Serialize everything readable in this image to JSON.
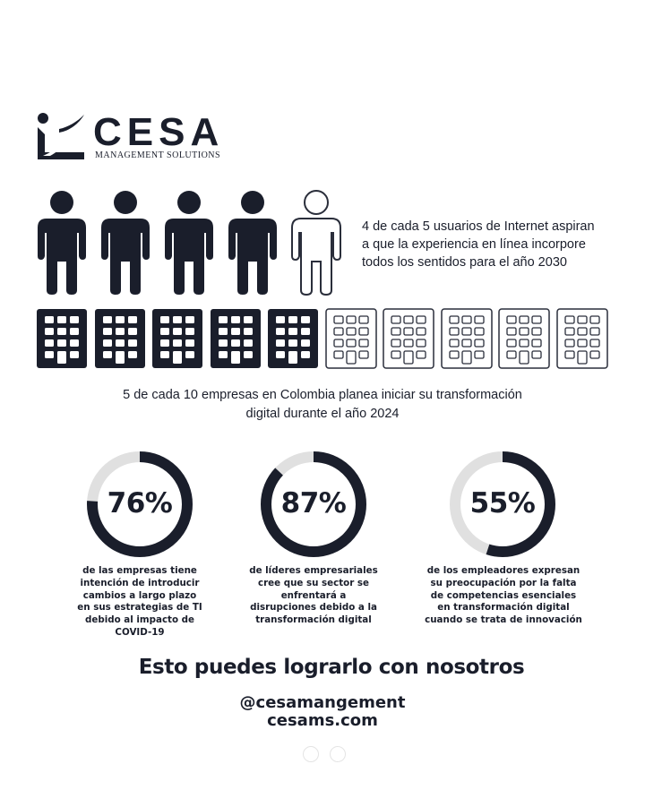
{
  "logo": {
    "wordmark": "CESA",
    "subtitle": "MANAGEMENT SOLUTIONS",
    "icon": "cesa-logo-mark-icon"
  },
  "colors": {
    "navy": "#1a1e2b",
    "ring_track": "#e0e0e0",
    "outline": "#2a2e3b"
  },
  "users_stat": {
    "filled": 4,
    "total": 5,
    "icon": "person-icon",
    "lines": [
      "4 de cada 5 usuarios de Internet aspiran",
      "a que la experiencia en línea incorpore",
      "todos los sentidos para el año 2030"
    ]
  },
  "companies_stat": {
    "filled": 5,
    "total": 10,
    "icon": "building-icon",
    "lines": [
      "5 de cada 10 empresas en Colombia planea iniciar su transformación",
      "digital durante el año 2024"
    ]
  },
  "donuts": [
    {
      "value": "76%",
      "fraction": 0.76,
      "lines": [
        "de las empresas tiene",
        "intención de introducir",
        "cambios a largo plazo",
        "en sus estrategias de TI",
        "debido al impacto de",
        "COVID-19"
      ]
    },
    {
      "value": "87%",
      "fraction": 0.87,
      "lines": [
        "de líderes empresariales",
        "cree que su sector se",
        "enfrentará a",
        "disrupciones debido a la",
        "transformación digital"
      ]
    },
    {
      "value": "55%",
      "fraction": 0.55,
      "lines": [
        "de los empleadores expresan",
        "su preocupación por la falta",
        "de competencias esenciales",
        "en transformación digital",
        "cuando se trata de innovación"
      ]
    }
  ],
  "cta": "Esto puedes lograrlo con nosotros",
  "handle": "@cesamangement",
  "website": "cesams.com",
  "pagination": {
    "count": 2
  }
}
